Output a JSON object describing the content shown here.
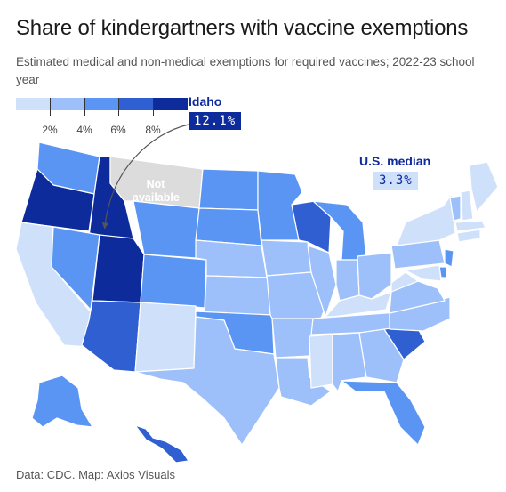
{
  "title": "Share of kindergartners with vaccine exemptions",
  "subtitle": "Estimated medical and non-medical exemptions for required vaccines; 2022-23 school year",
  "legend": {
    "colors": [
      "#cfe0fb",
      "#9ec0fa",
      "#5b95f3",
      "#2f5fd0",
      "#0e2b9c"
    ],
    "tick_labels": [
      "2%",
      "4%",
      "6%",
      "8%"
    ]
  },
  "annotations": {
    "idaho_label": "Idaho",
    "idaho_value": "12.1%",
    "median_label": "U.S. median",
    "median_value": "3.3%",
    "not_available": "Not available"
  },
  "footer": {
    "prefix": "Data: ",
    "source_link": "CDC",
    "suffix": ". Map: Axios Visuals"
  },
  "palette": {
    "lightest": "#cfe0fb",
    "light": "#9ec0fa",
    "mid": "#5b95f3",
    "dark": "#2f5fd0",
    "darkest": "#0e2b9c",
    "na": "#dcdcdc"
  }
}
